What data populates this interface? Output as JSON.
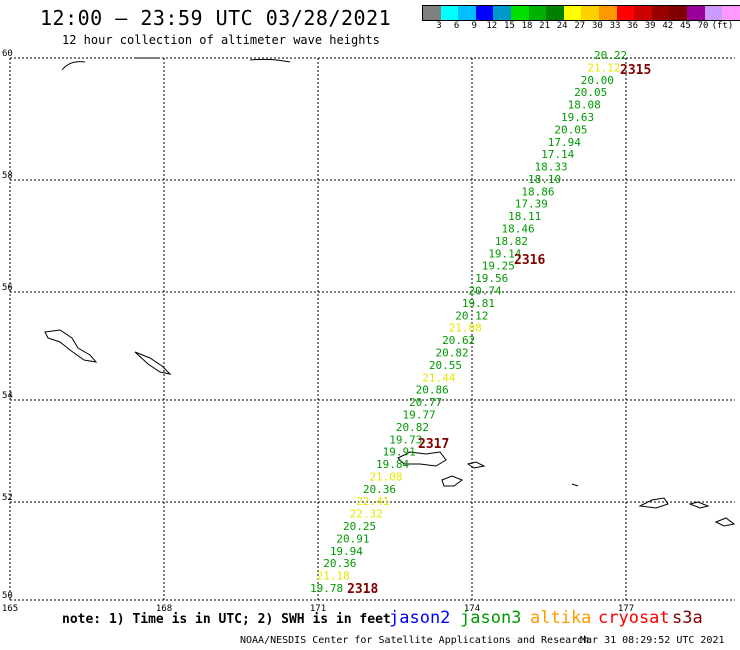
{
  "header": {
    "title": "12:00 – 23:59 UTC 03/28/2021",
    "subtitle": "12 hour collection of altimeter wave heights"
  },
  "color_scale": {
    "colors": [
      "#808080",
      "#00ffff",
      "#00bfff",
      "#0000ff",
      "#0099cc",
      "#00e000",
      "#00b000",
      "#008000",
      "#ffff00",
      "#ffd000",
      "#ff9900",
      "#ff0000",
      "#cc0000",
      "#990000",
      "#800000",
      "#990099",
      "#cc99ff",
      "#ff99ff",
      "#000000"
    ],
    "labels": [
      "3",
      "6",
      "9",
      "12",
      "15",
      "18",
      "21",
      "24",
      "27",
      "30",
      "33",
      "36",
      "39",
      "42",
      "45",
      "70",
      "(ft)"
    ]
  },
  "axes": {
    "lat_labels": [
      "60",
      "58",
      "56",
      "54",
      "52",
      "50"
    ],
    "lon_labels": [
      "165",
      "168",
      "171",
      "174",
      "177"
    ]
  },
  "track_labels": [
    {
      "text": "2315",
      "color": "#800000"
    },
    {
      "text": "2316",
      "color": "#800000"
    },
    {
      "text": "2317",
      "color": "#800000"
    },
    {
      "text": "2318",
      "color": "#800000"
    }
  ],
  "wave_heights": [
    {
      "v": "20.22",
      "c": "#009900"
    },
    {
      "v": "21.12",
      "c": "#e6e600"
    },
    {
      "v": "20.00",
      "c": "#009900"
    },
    {
      "v": "20.05",
      "c": "#009900"
    },
    {
      "v": "18.08",
      "c": "#009900"
    },
    {
      "v": "19.63",
      "c": "#009900"
    },
    {
      "v": "20.05",
      "c": "#009900"
    },
    {
      "v": "17.94",
      "c": "#009900"
    },
    {
      "v": "17.14",
      "c": "#009900"
    },
    {
      "v": "18.33",
      "c": "#009900"
    },
    {
      "v": "18.10",
      "c": "#009900"
    },
    {
      "v": "18.86",
      "c": "#009900"
    },
    {
      "v": "17.39",
      "c": "#009900"
    },
    {
      "v": "18.11",
      "c": "#009900"
    },
    {
      "v": "18.46",
      "c": "#009900"
    },
    {
      "v": "18.82",
      "c": "#009900"
    },
    {
      "v": "19.14",
      "c": "#009900"
    },
    {
      "v": "19.25",
      "c": "#009900"
    },
    {
      "v": "19.56",
      "c": "#009900"
    },
    {
      "v": "20.74",
      "c": "#009900"
    },
    {
      "v": "19.81",
      "c": "#009900"
    },
    {
      "v": "20.12",
      "c": "#009900"
    },
    {
      "v": "21.08",
      "c": "#e6e600"
    },
    {
      "v": "20.62",
      "c": "#009900"
    },
    {
      "v": "20.82",
      "c": "#009900"
    },
    {
      "v": "20.55",
      "c": "#009900"
    },
    {
      "v": "21.44",
      "c": "#e6e600"
    },
    {
      "v": "20.86",
      "c": "#009900"
    },
    {
      "v": "20.77",
      "c": "#009900"
    },
    {
      "v": "19.77",
      "c": "#009900"
    },
    {
      "v": "20.82",
      "c": "#009900"
    },
    {
      "v": "19.73",
      "c": "#009900"
    },
    {
      "v": "19.91",
      "c": "#009900"
    },
    {
      "v": "19.84",
      "c": "#009900"
    },
    {
      "v": "21.08",
      "c": "#e6e600"
    },
    {
      "v": "20.36",
      "c": "#009900"
    },
    {
      "v": "22.41",
      "c": "#e6e600"
    },
    {
      "v": "22.32",
      "c": "#e6e600"
    },
    {
      "v": "20.25",
      "c": "#009900"
    },
    {
      "v": "20.91",
      "c": "#009900"
    },
    {
      "v": "19.94",
      "c": "#009900"
    },
    {
      "v": "20.36",
      "c": "#009900"
    },
    {
      "v": "21.18",
      "c": "#e6e600"
    },
    {
      "v": "19.78",
      "c": "#009900"
    }
  ],
  "footer": {
    "note": "note: 1) Time is in UTC; 2) SWH is in feet",
    "legend": [
      {
        "name": "jason2",
        "color": "#0000ff"
      },
      {
        "name": "jason3",
        "color": "#009900"
      },
      {
        "name": "altika",
        "color": "#ff9900"
      },
      {
        "name": "cryosat",
        "color": "#ff0000"
      },
      {
        "name": "s3a",
        "color": "#800000"
      }
    ],
    "credit": "NOAA/NESDIS Center for Satellite Applications and Research",
    "timestamp": "Mar 31 08:29:52 UTC 2021"
  }
}
